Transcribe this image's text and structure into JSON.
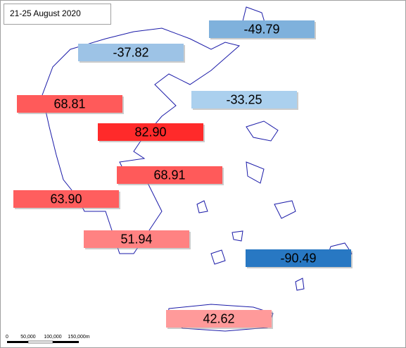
{
  "title": "21-25 August 2020",
  "labels": [
    {
      "text": "-49.79",
      "color": "#7fb1dc"
    },
    {
      "text": "-37.82",
      "color": "#9dc3e6"
    },
    {
      "text": "68.81",
      "color": "#ff5a5a"
    },
    {
      "text": "-33.25",
      "color": "#abd0ee"
    },
    {
      "text": "82.90",
      "color": "#ff2a2a"
    },
    {
      "text": "68.91",
      "color": "#ff5a5a"
    },
    {
      "text": "63.90",
      "color": "#ff5e5e"
    },
    {
      "text": "51.94",
      "color": "#ff8282"
    },
    {
      "text": "-90.49",
      "color": "#2878c3"
    },
    {
      "text": "42.62",
      "color": "#ff9a9a"
    }
  ],
  "scale_bar": [
    "0",
    "50,000",
    "100,000",
    "150,000m"
  ]
}
